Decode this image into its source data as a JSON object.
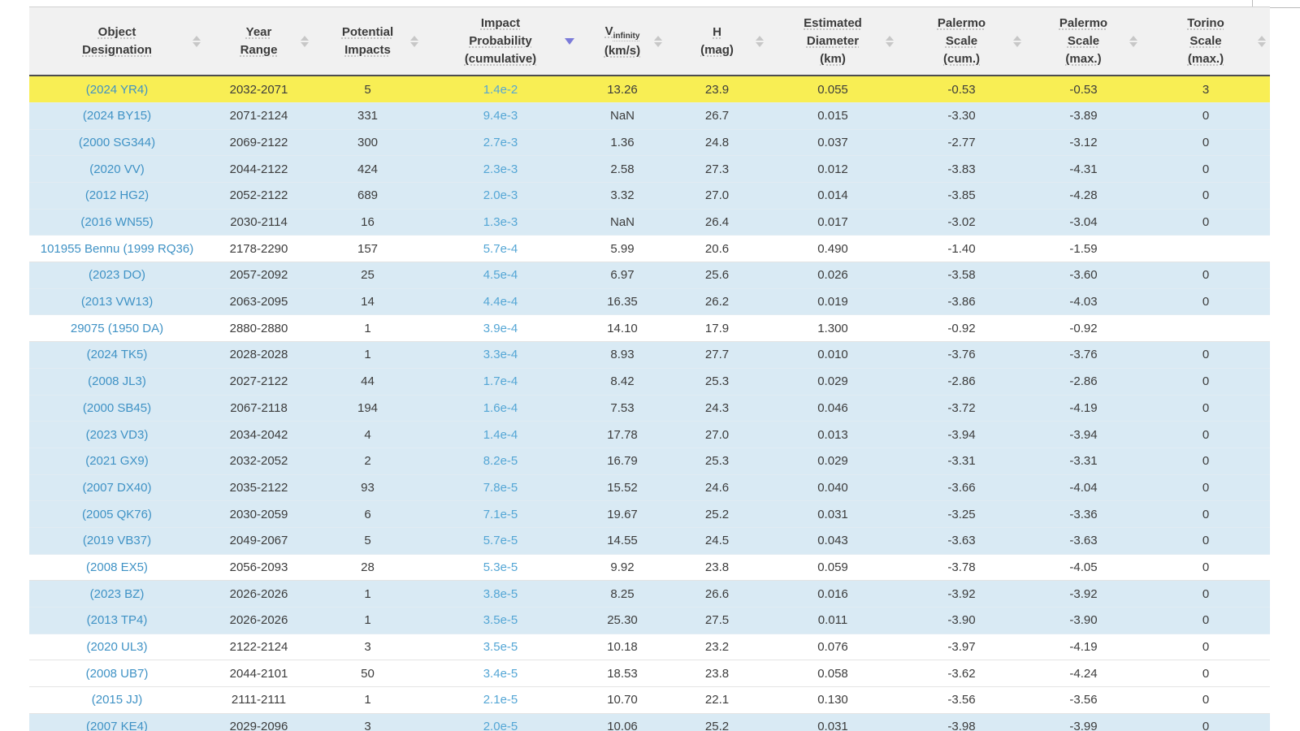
{
  "table": {
    "columns": [
      {
        "id": "designation",
        "lines": [
          "Object",
          "Designation"
        ],
        "sort": "none"
      },
      {
        "id": "year-range",
        "lines": [
          "Year",
          "Range"
        ],
        "sort": "none"
      },
      {
        "id": "potential-impacts",
        "lines": [
          "Potential",
          "Impacts"
        ],
        "sort": "none"
      },
      {
        "id": "impact-probability",
        "lines": [
          "Impact",
          "Probability",
          "(cumulative)"
        ],
        "sort": "desc"
      },
      {
        "id": "v-infinity",
        "lines": [
          "V_infinity",
          "(km/s)"
        ],
        "sort": "none"
      },
      {
        "id": "h-magnitude",
        "lines": [
          "H",
          "(mag)"
        ],
        "sort": "none"
      },
      {
        "id": "estimated-diameter",
        "lines": [
          "Estimated",
          "Diameter",
          "(km)"
        ],
        "sort": "none"
      },
      {
        "id": "palermo-cum",
        "lines": [
          "Palermo",
          "Scale",
          "(cum.)"
        ],
        "sort": "none"
      },
      {
        "id": "palermo-max",
        "lines": [
          "Palermo",
          "Scale",
          "(max.)"
        ],
        "sort": "none"
      },
      {
        "id": "torino-max",
        "lines": [
          "Torino",
          "Scale",
          "(max.)"
        ],
        "sort": "none"
      }
    ],
    "rows": [
      {
        "bg": "yellow",
        "cells": [
          "(2024 YR4)",
          "2032-2071",
          "5",
          "1.4e-2",
          "13.26",
          "23.9",
          "0.055",
          "-0.53",
          "-0.53",
          "3"
        ]
      },
      {
        "bg": "blue",
        "cells": [
          "(2024 BY15)",
          "2071-2124",
          "331",
          "9.4e-3",
          "NaN",
          "26.7",
          "0.015",
          "-3.30",
          "-3.89",
          "0"
        ]
      },
      {
        "bg": "blue",
        "cells": [
          "(2000 SG344)",
          "2069-2122",
          "300",
          "2.7e-3",
          "1.36",
          "24.8",
          "0.037",
          "-2.77",
          "-3.12",
          "0"
        ]
      },
      {
        "bg": "blue",
        "cells": [
          "(2020 VV)",
          "2044-2122",
          "424",
          "2.3e-3",
          "2.58",
          "27.3",
          "0.012",
          "-3.83",
          "-4.31",
          "0"
        ]
      },
      {
        "bg": "blue",
        "cells": [
          "(2012 HG2)",
          "2052-2122",
          "689",
          "2.0e-3",
          "3.32",
          "27.0",
          "0.014",
          "-3.85",
          "-4.28",
          "0"
        ]
      },
      {
        "bg": "blue",
        "cells": [
          "(2016 WN55)",
          "2030-2114",
          "16",
          "1.3e-3",
          "NaN",
          "26.4",
          "0.017",
          "-3.02",
          "-3.04",
          "0"
        ]
      },
      {
        "bg": "white",
        "cells": [
          "101955 Bennu (1999 RQ36)",
          "2178-2290",
          "157",
          "5.7e-4",
          "5.99",
          "20.6",
          "0.490",
          "-1.40",
          "-1.59",
          ""
        ]
      },
      {
        "bg": "blue",
        "cells": [
          "(2023 DO)",
          "2057-2092",
          "25",
          "4.5e-4",
          "6.97",
          "25.6",
          "0.026",
          "-3.58",
          "-3.60",
          "0"
        ]
      },
      {
        "bg": "blue",
        "cells": [
          "(2013 VW13)",
          "2063-2095",
          "14",
          "4.4e-4",
          "16.35",
          "26.2",
          "0.019",
          "-3.86",
          "-4.03",
          "0"
        ]
      },
      {
        "bg": "white",
        "cells": [
          "29075 (1950 DA)",
          "2880-2880",
          "1",
          "3.9e-4",
          "14.10",
          "17.9",
          "1.300",
          "-0.92",
          "-0.92",
          ""
        ]
      },
      {
        "bg": "blue",
        "cells": [
          "(2024 TK5)",
          "2028-2028",
          "1",
          "3.3e-4",
          "8.93",
          "27.7",
          "0.010",
          "-3.76",
          "-3.76",
          "0"
        ]
      },
      {
        "bg": "blue",
        "cells": [
          "(2008 JL3)",
          "2027-2122",
          "44",
          "1.7e-4",
          "8.42",
          "25.3",
          "0.029",
          "-2.86",
          "-2.86",
          "0"
        ]
      },
      {
        "bg": "blue",
        "cells": [
          "(2000 SB45)",
          "2067-2118",
          "194",
          "1.6e-4",
          "7.53",
          "24.3",
          "0.046",
          "-3.72",
          "-4.19",
          "0"
        ]
      },
      {
        "bg": "blue",
        "cells": [
          "(2023 VD3)",
          "2034-2042",
          "4",
          "1.4e-4",
          "17.78",
          "27.0",
          "0.013",
          "-3.94",
          "-3.94",
          "0"
        ]
      },
      {
        "bg": "blue",
        "cells": [
          "(2021 GX9)",
          "2032-2052",
          "2",
          "8.2e-5",
          "16.79",
          "25.3",
          "0.029",
          "-3.31",
          "-3.31",
          "0"
        ]
      },
      {
        "bg": "blue",
        "cells": [
          "(2007 DX40)",
          "2035-2122",
          "93",
          "7.8e-5",
          "15.52",
          "24.6",
          "0.040",
          "-3.66",
          "-4.04",
          "0"
        ]
      },
      {
        "bg": "blue",
        "cells": [
          "(2005 QK76)",
          "2030-2059",
          "6",
          "7.1e-5",
          "19.67",
          "25.2",
          "0.031",
          "-3.25",
          "-3.36",
          "0"
        ]
      },
      {
        "bg": "blue",
        "cells": [
          "(2019 VB37)",
          "2049-2067",
          "5",
          "5.7e-5",
          "14.55",
          "24.5",
          "0.043",
          "-3.63",
          "-3.63",
          "0"
        ]
      },
      {
        "bg": "white",
        "cells": [
          "(2008 EX5)",
          "2056-2093",
          "28",
          "5.3e-5",
          "9.92",
          "23.8",
          "0.059",
          "-3.78",
          "-4.05",
          "0"
        ]
      },
      {
        "bg": "blue",
        "cells": [
          "(2023 BZ)",
          "2026-2026",
          "1",
          "3.8e-5",
          "8.25",
          "26.6",
          "0.016",
          "-3.92",
          "-3.92",
          "0"
        ]
      },
      {
        "bg": "blue",
        "cells": [
          "(2013 TP4)",
          "2026-2026",
          "1",
          "3.5e-5",
          "25.30",
          "27.5",
          "0.011",
          "-3.90",
          "-3.90",
          "0"
        ]
      },
      {
        "bg": "white",
        "cells": [
          "(2020 UL3)",
          "2122-2124",
          "3",
          "3.5e-5",
          "10.18",
          "23.2",
          "0.076",
          "-3.97",
          "-4.19",
          "0"
        ]
      },
      {
        "bg": "white",
        "cells": [
          "(2008 UB7)",
          "2044-2101",
          "50",
          "3.4e-5",
          "18.53",
          "23.8",
          "0.058",
          "-3.62",
          "-4.24",
          "0"
        ]
      },
      {
        "bg": "white",
        "cells": [
          "(2015 JJ)",
          "2111-2111",
          "1",
          "2.1e-5",
          "10.70",
          "22.1",
          "0.130",
          "-3.56",
          "-3.56",
          "0"
        ]
      },
      {
        "bg": "blue",
        "cells": [
          "(2007 KE4)",
          "2029-2096",
          "3",
          "2.0e-5",
          "10.06",
          "25.2",
          "0.031",
          "-3.98",
          "-3.99",
          "0"
        ]
      }
    ]
  },
  "colors": {
    "highlight_row": "#f8ee54",
    "alt_row": "#d9eaf4",
    "plain_row": "#ffffff",
    "header_bg": "#f1f1f1",
    "object_link": "#3f92c5",
    "probability_link": "#54a6d5",
    "active_sort_arrow": "#7b7bd9",
    "inactive_sort_arrow": "#c7c7c7"
  }
}
